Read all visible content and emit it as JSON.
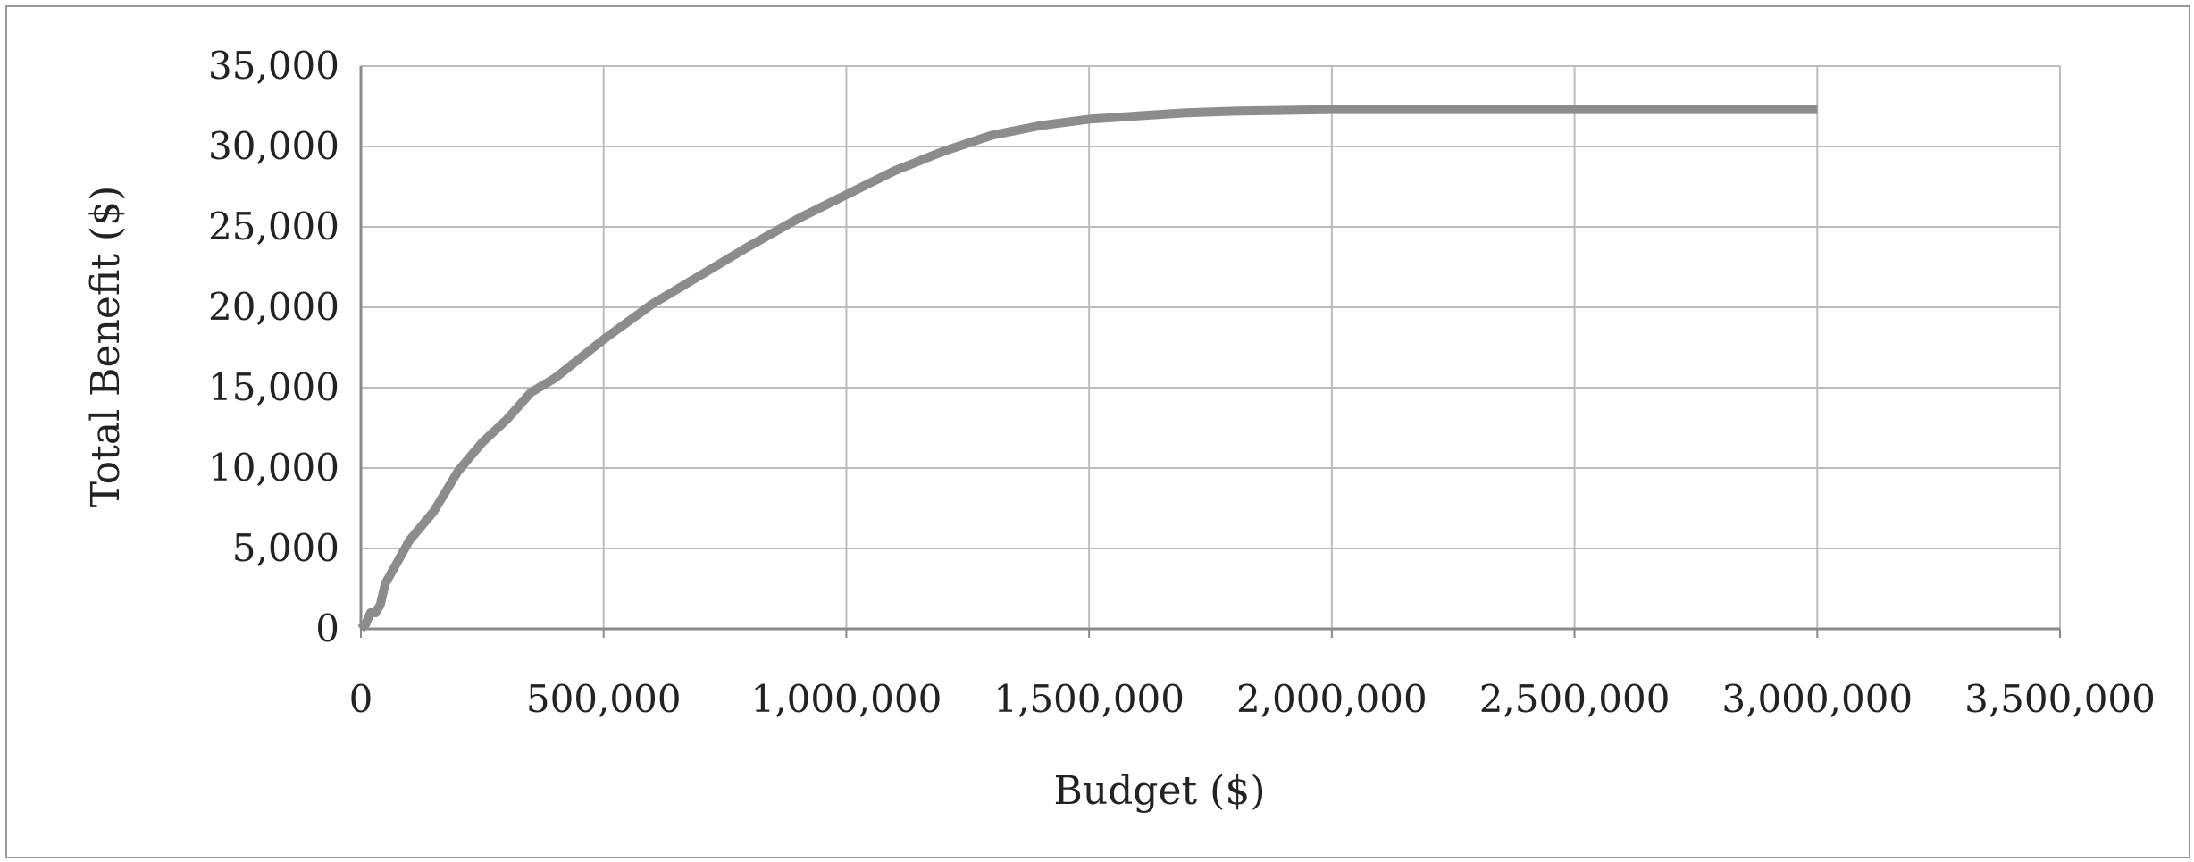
{
  "chart_data": {
    "type": "line",
    "title": "",
    "xlabel": "Budget ($)",
    "ylabel": "Total Benefit ($)",
    "xlim": [
      0,
      3500000
    ],
    "ylim": [
      0,
      35000
    ],
    "x_ticks": [
      "0",
      "500,000",
      "1,000,000",
      "1,500,000",
      "2,000,000",
      "2,500,000",
      "3,000,000",
      "3,500,000"
    ],
    "y_ticks": [
      "0",
      "5,000",
      "10,000",
      "15,000",
      "20,000",
      "25,000",
      "30,000",
      "35,000"
    ],
    "grid": true,
    "legend": "none",
    "line_color": "#8c8c8c",
    "grid_color": "#bdbdbd",
    "series": [
      {
        "x": [
          0,
          10000,
          20000,
          30000,
          40000,
          50000,
          100000,
          150000,
          200000,
          250000,
          300000,
          350000,
          400000,
          500000,
          600000,
          700000,
          800000,
          900000,
          1000000,
          1100000,
          1200000,
          1300000,
          1400000,
          1500000,
          1600000,
          1700000,
          1800000,
          2000000,
          2200000,
          2400000,
          2600000,
          2800000,
          3000000
        ],
        "y": [
          0,
          300,
          1000,
          1000,
          1500,
          2800,
          5500,
          7300,
          9800,
          11600,
          13000,
          14700,
          15600,
          18000,
          20200,
          22000,
          23800,
          25500,
          27000,
          28500,
          29700,
          30700,
          31300,
          31700,
          31900,
          32100,
          32200,
          32300,
          32300,
          32300,
          32300,
          32300,
          32300
        ]
      }
    ]
  }
}
